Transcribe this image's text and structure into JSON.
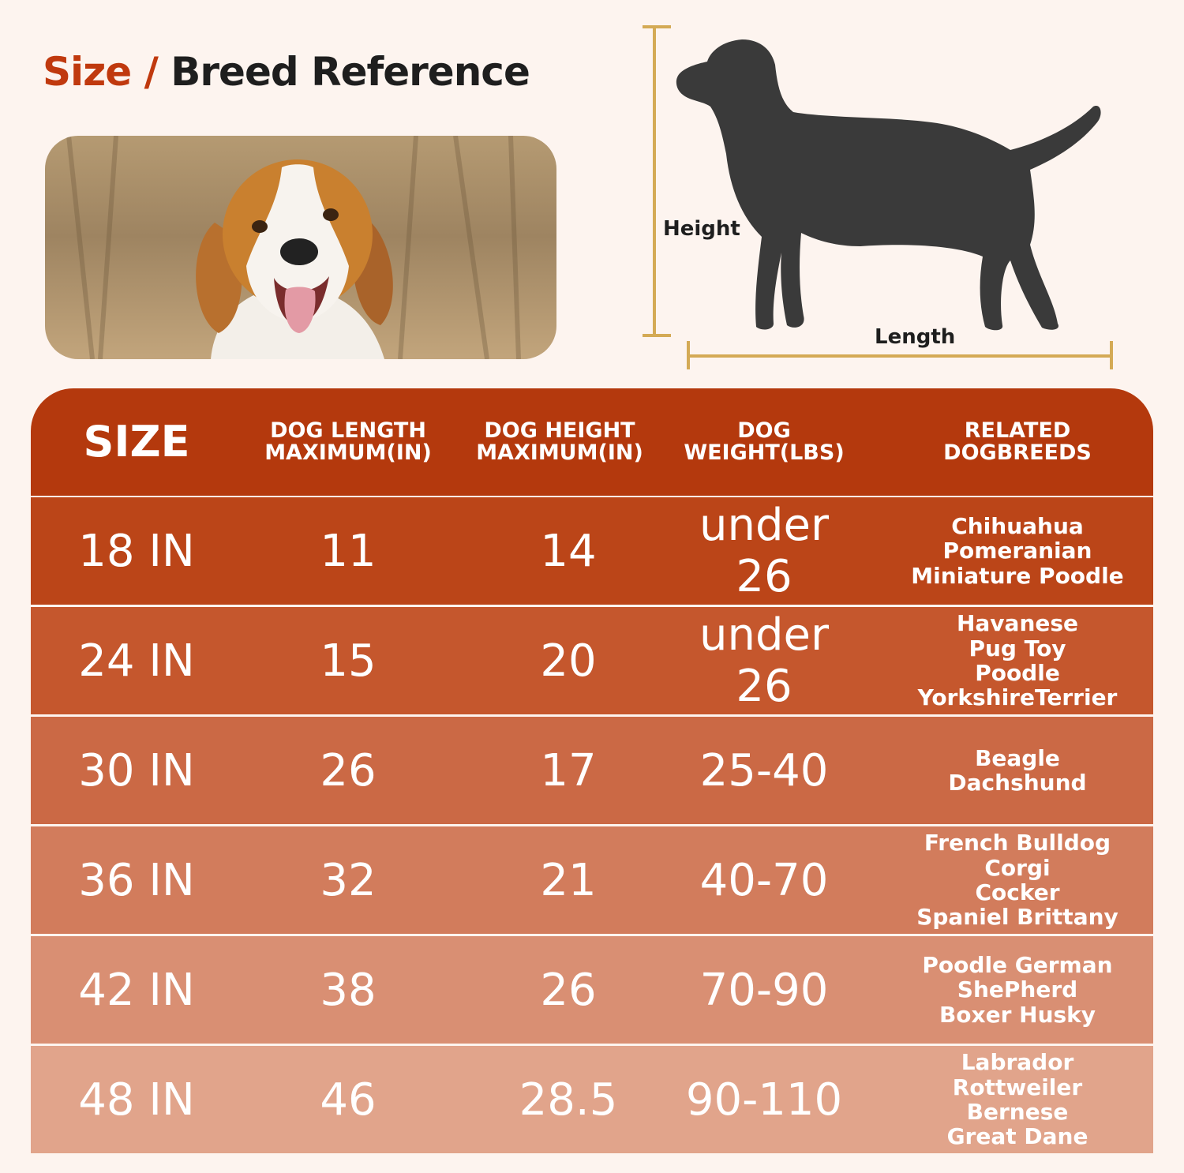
{
  "header": {
    "title_size": "Size",
    "title_separator": "/",
    "title_rest": "Breed Reference"
  },
  "diagram": {
    "height_label": "Height",
    "length_label": "Length",
    "accent_color": "#d4aa55",
    "silhouette_color": "#3a3a3a"
  },
  "table": {
    "headers": {
      "size": "SIZE",
      "length_1": "DOG LENGTH",
      "length_2": "MAXIMUM(IN)",
      "height_1": "DOG HEIGHT",
      "height_2": "MAXIMUM(IN)",
      "weight_1": "DOG",
      "weight_2": "WEIGHT(LBS)",
      "breeds_1": "RELATED",
      "breeds_2": "DOGBREEDS"
    },
    "rows": [
      {
        "size": "18 IN",
        "length": "11",
        "height": "14",
        "weight": "under 26",
        "breeds": [
          "Chihuahua",
          "Pomeranian",
          "Miniature Poodle"
        ],
        "color": "#bb4518"
      },
      {
        "size": "24 IN",
        "length": "15",
        "height": "20",
        "weight": "under 26",
        "breeds": [
          "Havanese",
          "Pug Toy",
          "Poodle",
          "YorkshireTerrier"
        ],
        "color": "#c5572d"
      },
      {
        "size": "30 IN",
        "length": "26",
        "height": "17",
        "weight": "25-40",
        "breeds": [
          "Beagle",
          "Dachshund"
        ],
        "color": "#cb6945"
      },
      {
        "size": "36 IN",
        "length": "32",
        "height": "21",
        "weight": "40-70",
        "breeds": [
          "French Bulldog",
          "Corgi",
          "Cocker",
          "Spaniel Brittany"
        ],
        "color": "#d27c5c"
      },
      {
        "size": "42 IN",
        "length": "38",
        "height": "26",
        "weight": "70-90",
        "breeds": [
          "Poodle German",
          "ShePherd",
          "Boxer Husky"
        ],
        "color": "#d98f73"
      },
      {
        "size": "48 IN",
        "length": "46",
        "height": "28.5",
        "weight": "90-110",
        "breeds": [
          "Labrador",
          "Rottweiler",
          "Bernese",
          "Great Dane"
        ],
        "color": "#e1a48b"
      }
    ]
  }
}
